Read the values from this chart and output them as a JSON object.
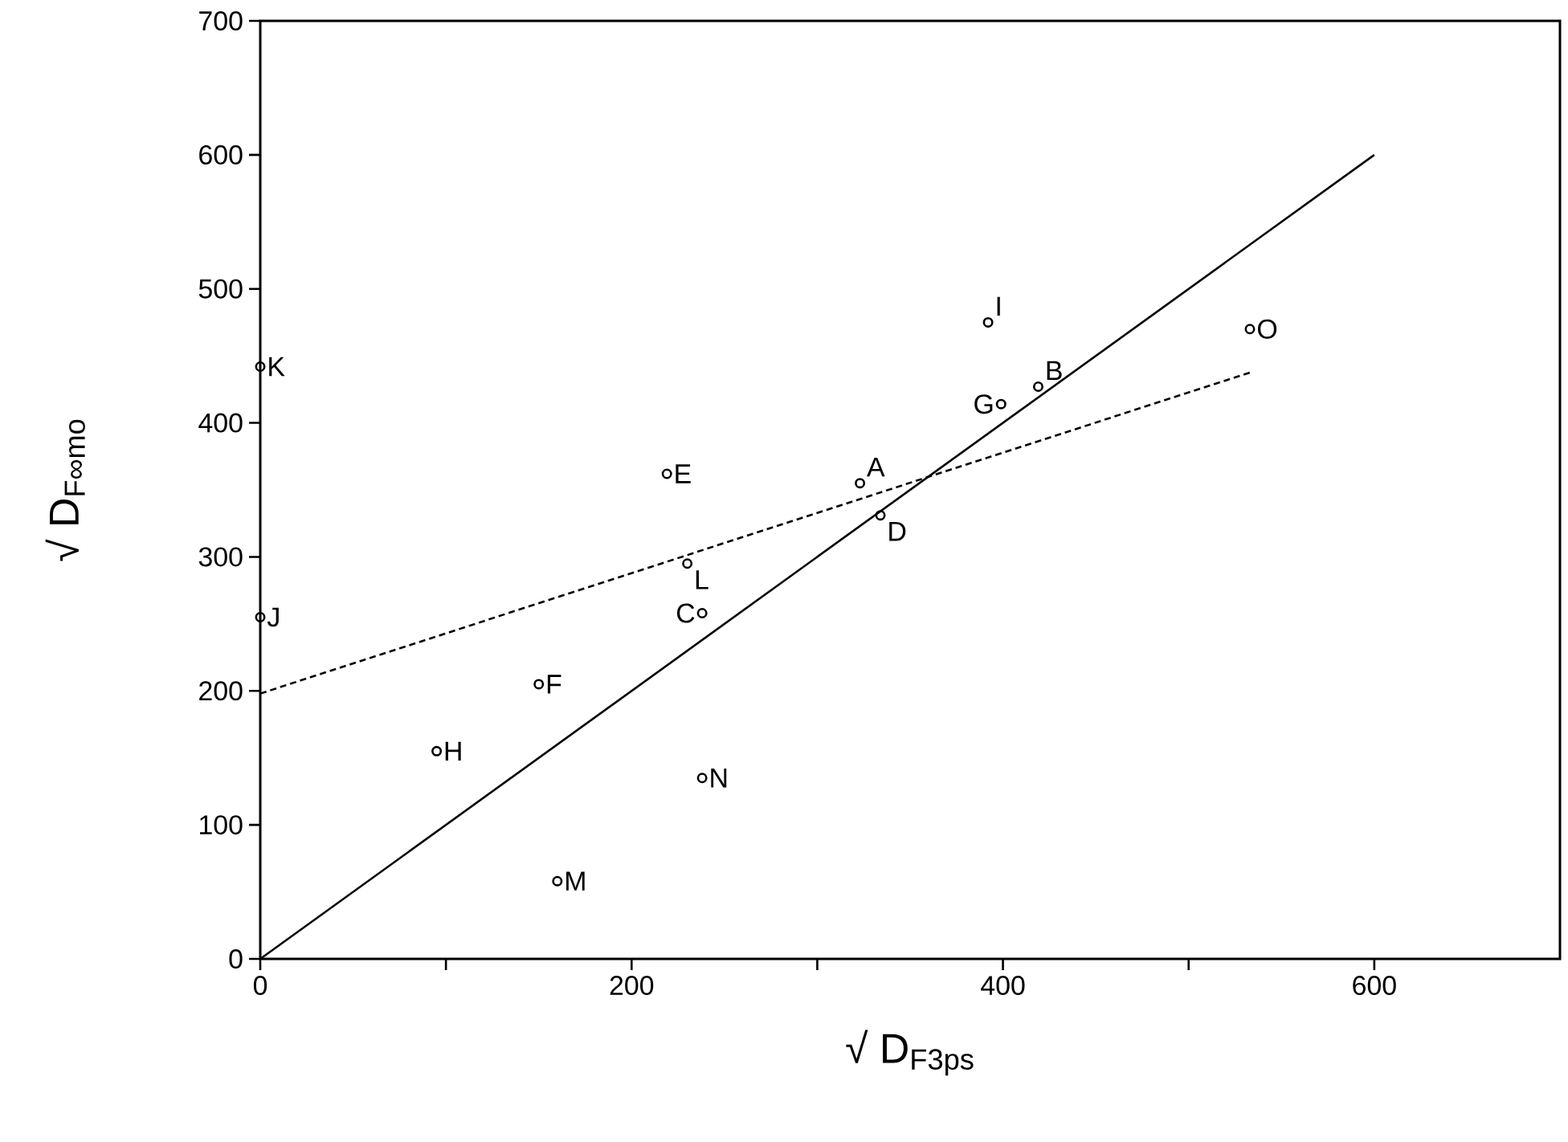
{
  "chart_data": {
    "type": "scatter",
    "xlabel": "√ D$_{F3ps}$",
    "ylabel": "√ D$_{F∞mo}$",
    "xlim": [
      0,
      700
    ],
    "ylim": [
      0,
      700
    ],
    "xticks": [
      0,
      {
        "value": 100,
        "label": null
      },
      200,
      {
        "value": 300,
        "label": null
      },
      400,
      {
        "value": 500,
        "label": null
      },
      600
    ],
    "yticks": [
      0,
      100,
      200,
      300,
      400,
      500,
      600,
      700
    ],
    "series": [
      {
        "marker": "circle",
        "color": "#000000",
        "x": [
          323,
          419,
          238,
          334,
          219,
          150,
          399,
          95,
          392,
          0,
          0,
          230,
          160,
          238,
          533
        ],
        "values": [
          355,
          427,
          258,
          331,
          362,
          205,
          414,
          155,
          475,
          255,
          442,
          295,
          58,
          135,
          470
        ],
        "value_labels": [
          "A",
          "B",
          "C",
          "D",
          "E",
          "F",
          "G",
          "H",
          "I",
          "J",
          "K",
          "L",
          "M",
          "N",
          "O"
        ]
      },
      {
        "type": "line",
        "marker": "none",
        "line_style": "solid",
        "color": "#000000",
        "x": [
          0,
          600
        ],
        "values": [
          0,
          600
        ]
      },
      {
        "type": "line",
        "marker": "none",
        "line_style": "dashed",
        "color": "#000000",
        "x": [
          0,
          534
        ],
        "values": [
          198,
          438
        ]
      }
    ]
  }
}
